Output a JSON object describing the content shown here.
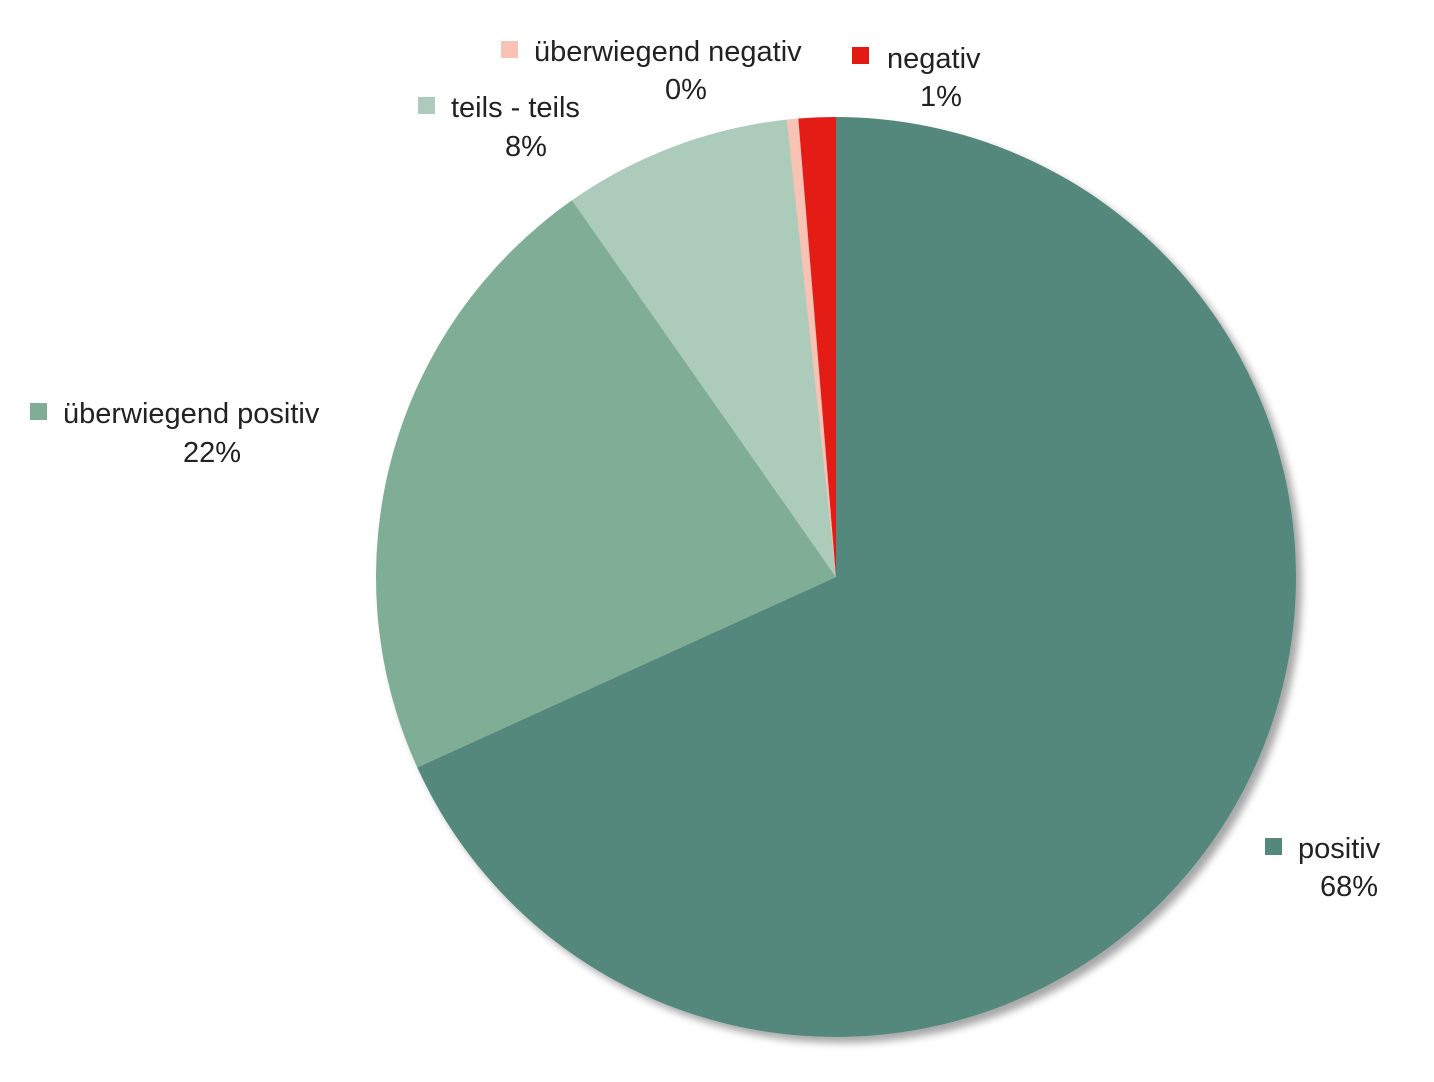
{
  "chart_data": {
    "type": "pie",
    "title": "",
    "start": "12 o'clock",
    "direction": "clockwise",
    "slices": [
      {
        "label": "positiv",
        "value": 68,
        "value_label": "68%",
        "color": "#54887d"
      },
      {
        "label": "überwiegend positiv",
        "value": 22,
        "value_label": "22%",
        "color": "#80ad95"
      },
      {
        "label": "teils - teils",
        "value": 8,
        "value_label": "8%",
        "color": "#adcbba"
      },
      {
        "label": "überwiegend negativ",
        "value": 0.4,
        "value_label": "0%",
        "color": "#f8c2b4"
      },
      {
        "label": "negativ",
        "value": 1.3,
        "value_label": "1%",
        "color": "#e31a14"
      }
    ]
  }
}
